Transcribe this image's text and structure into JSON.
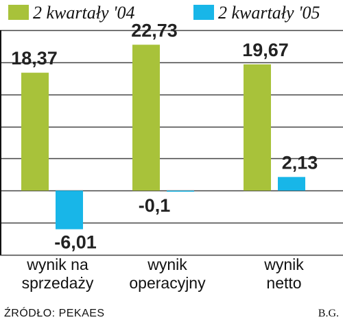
{
  "chart_data": {
    "type": "bar",
    "categories": [
      [
        "wynik na",
        "sprzedaży"
      ],
      [
        "wynik",
        "operacyjny"
      ],
      [
        "wynik",
        "netto"
      ]
    ],
    "series": [
      {
        "name": "2 kwartały '04",
        "color": "#a8c23a",
        "values": [
          18.37,
          22.73,
          19.67
        ],
        "labels": [
          "18,37",
          "22,73",
          "19,67"
        ]
      },
      {
        "name": "2 kwartały '05",
        "color": "#18b6e8",
        "values": [
          -6.01,
          -0.1,
          2.13
        ],
        "labels": [
          "-6,01",
          "-0,1",
          "2,13"
        ]
      }
    ],
    "ylim": [
      -10,
      25
    ],
    "grid": true,
    "legend": "top"
  },
  "source": "ŹRÓDŁO: PEKAES",
  "author": "B.G."
}
